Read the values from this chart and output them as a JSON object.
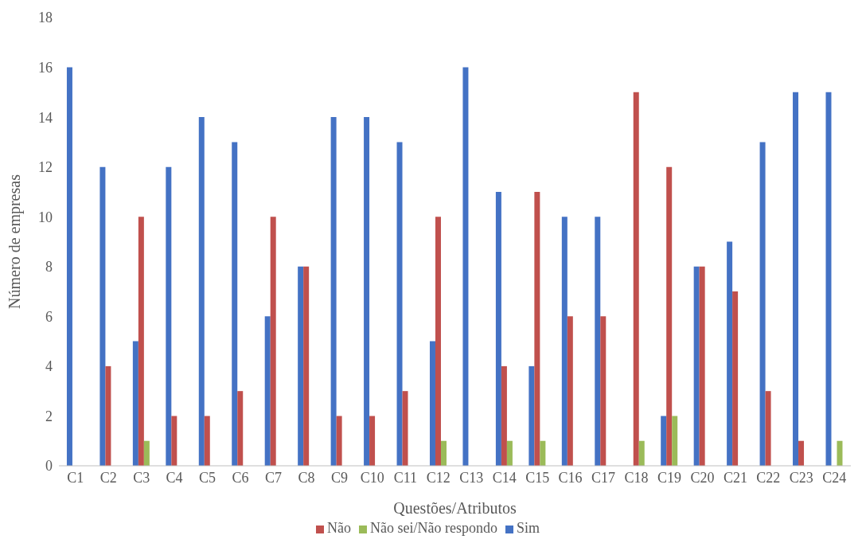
{
  "chart_data": {
    "type": "bar",
    "xlabel": "Questões/Atributos",
    "ylabel": "Número de empresas",
    "categories": [
      "C1",
      "C2",
      "C3",
      "C4",
      "C5",
      "C6",
      "C7",
      "C8",
      "C9",
      "C10",
      "C11",
      "C12",
      "C13",
      "C14",
      "C15",
      "C16",
      "C17",
      "C18",
      "C19",
      "C20",
      "C21",
      "C22",
      "C23",
      "C24"
    ],
    "series": [
      {
        "name": "Sim",
        "color": "#4472c4",
        "values": [
          16,
          12,
          5,
          12,
          14,
          13,
          6,
          8,
          14,
          14,
          13,
          5,
          16,
          11,
          4,
          10,
          10,
          0,
          2,
          8,
          9,
          13,
          15,
          15
        ]
      },
      {
        "name": "Não",
        "color": "#c0504d",
        "values": [
          0,
          4,
          10,
          2,
          2,
          3,
          10,
          8,
          2,
          2,
          3,
          10,
          0,
          4,
          11,
          6,
          6,
          15,
          12,
          8,
          7,
          3,
          1,
          0
        ]
      },
      {
        "name": "Não sei/Não respondo",
        "color": "#9bbb59",
        "values": [
          0,
          0,
          1,
          0,
          0,
          0,
          0,
          0,
          0,
          0,
          0,
          1,
          0,
          1,
          1,
          0,
          0,
          1,
          2,
          0,
          0,
          0,
          0,
          1
        ]
      }
    ],
    "ylim": [
      0,
      18
    ],
    "yticks": [
      0,
      2,
      4,
      6,
      8,
      10,
      12,
      14,
      16,
      18
    ],
    "grid": false,
    "legend": "bottom"
  }
}
